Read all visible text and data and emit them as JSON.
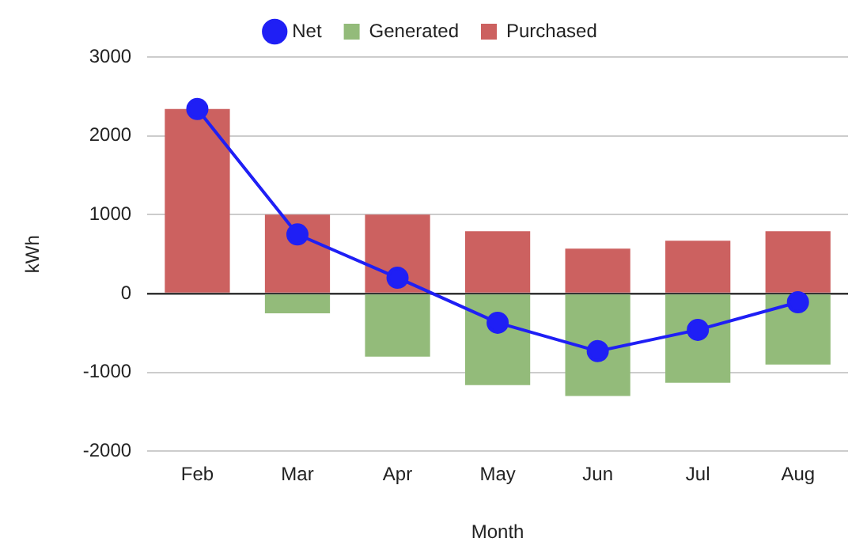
{
  "chart_data": {
    "type": "bar",
    "stacked": true,
    "xlabel": "Month",
    "ylabel": "kWh",
    "categories": [
      "Feb",
      "Mar",
      "Apr",
      "May",
      "Jun",
      "Jul",
      "Aug"
    ],
    "series": [
      {
        "name": "Net",
        "type": "line",
        "color": "#1f1ff5",
        "marker": "circle",
        "line_style": "solid",
        "values": [
          2340,
          750,
          200,
          -370,
          -730,
          -460,
          -110
        ]
      },
      {
        "name": "Generated",
        "color": "#93bb7a",
        "values": [
          0,
          -250,
          -800,
          -1160,
          -1300,
          -1130,
          -900
        ]
      },
      {
        "name": "Purchased",
        "color": "#cc6160",
        "values": [
          2340,
          1000,
          1000,
          790,
          570,
          670,
          790
        ]
      }
    ],
    "ylim": [
      -2000,
      3000
    ],
    "yticks": [
      -2000,
      -1000,
      0,
      1000,
      2000,
      3000
    ],
    "grid": "y",
    "legend": "top"
  }
}
